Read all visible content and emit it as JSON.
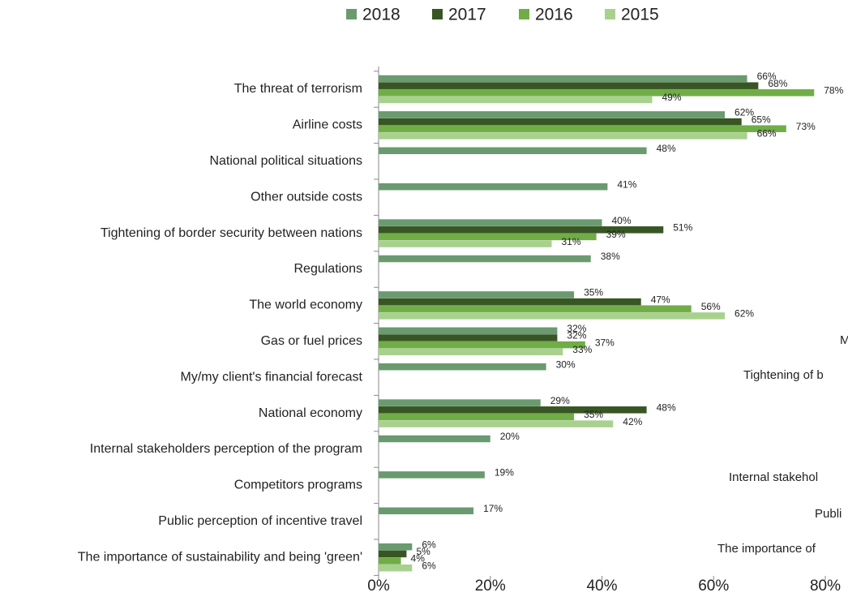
{
  "chart_data": {
    "type": "bar",
    "orientation": "horizontal",
    "categories": [
      "The threat of terrorism",
      "Airline costs",
      "National political situations",
      "Other outside costs",
      "Tightening of border security between nations",
      "Regulations",
      "The world economy",
      "Gas or fuel prices",
      "My/my client's financial forecast",
      "National economy",
      "Internal stakeholders perception of the program",
      "Competitors programs",
      "Public perception of incentive travel",
      "The importance of sustainability and being 'green'"
    ],
    "series": [
      {
        "name": "2018",
        "color": "#6a9a6f",
        "values": [
          66,
          62,
          48,
          41,
          40,
          38,
          35,
          32,
          30,
          29,
          20,
          19,
          17,
          6
        ],
        "value_labels": [
          "66%",
          "62%",
          "48%",
          "41%",
          "40%",
          "38%",
          "35%",
          "32%",
          "30%",
          "29%",
          "20%",
          "19%",
          "17%",
          "6%"
        ]
      },
      {
        "name": "2017",
        "color": "#375623",
        "values": [
          68,
          65,
          null,
          null,
          51,
          null,
          47,
          32,
          null,
          48,
          null,
          null,
          null,
          5
        ],
        "value_labels": [
          "68%",
          "65%",
          null,
          null,
          "51%",
          null,
          "47%",
          "32%",
          null,
          "48%",
          null,
          null,
          null,
          "5%"
        ]
      },
      {
        "name": "2016",
        "color": "#70ad47",
        "values": [
          78,
          73,
          null,
          null,
          39,
          null,
          56,
          37,
          null,
          35,
          null,
          null,
          null,
          4
        ],
        "value_labels": [
          "78%",
          "73%",
          null,
          null,
          "39%",
          null,
          "56%",
          "37%",
          null,
          "35%",
          null,
          null,
          null,
          "4%"
        ]
      },
      {
        "name": "2015",
        "color": "#a9d18e",
        "values": [
          49,
          66,
          null,
          null,
          31,
          null,
          62,
          33,
          null,
          42,
          null,
          null,
          null,
          6
        ],
        "value_labels": [
          "49%",
          "66%",
          null,
          null,
          "31%",
          null,
          "62%",
          "33%",
          null,
          "42%",
          null,
          null,
          null,
          "6%"
        ]
      }
    ],
    "xlim": [
      0,
      80
    ],
    "xticks": [
      {
        "value": 0,
        "label": "0%"
      },
      {
        "value": 20,
        "label": "20%"
      },
      {
        "value": 40,
        "label": "40%"
      },
      {
        "value": 60,
        "label": "60%"
      },
      {
        "value": 80,
        "label": "80%"
      }
    ],
    "legend": "top",
    "annotations": [
      "M",
      "Tightening of b",
      "Internal stakehol",
      "Publi",
      "The importance of"
    ]
  }
}
